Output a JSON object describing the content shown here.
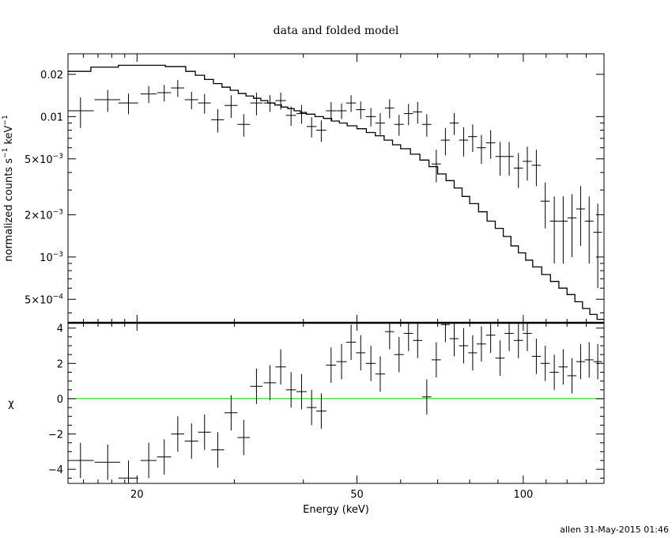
{
  "title": "data and folded model",
  "footer": "allen 31-May-2015 01:46",
  "chart_data": [
    {
      "type": "scatter",
      "panel": "top",
      "ylabel_main": "normalized counts s",
      "ylabel_sup1": "−1",
      "ylabel_mid": " keV",
      "ylabel_sup2": "−1",
      "xscale": "log",
      "yscale": "log",
      "xlim": [
        15,
        140
      ],
      "ylim": [
        0.00034,
        0.028
      ],
      "yticks": [
        {
          "v": 0.02,
          "mant": "0.02",
          "exp": ""
        },
        {
          "v": 0.01,
          "mant": "0.01",
          "exp": ""
        },
        {
          "v": 0.005,
          "mant": "5×10",
          "exp": "−3"
        },
        {
          "v": 0.002,
          "mant": "2×10",
          "exp": "−3"
        },
        {
          "v": 0.001,
          "mant": "10",
          "exp": "−3"
        },
        {
          "v": 0.0005,
          "mant": "5×10",
          "exp": "−4"
        }
      ],
      "data": {
        "x": [
          15.8,
          17.7,
          19.3,
          21.0,
          22.4,
          23.7,
          25.1,
          26.5,
          28.0,
          29.6,
          31.2,
          32.9,
          34.8,
          36.4,
          38.0,
          39.7,
          41.4,
          43.1,
          44.9,
          46.9,
          48.8,
          50.8,
          53.0,
          55.1,
          57.3,
          59.6,
          62.0,
          64.4,
          66.9,
          69.6,
          72.3,
          75.0,
          78.0,
          81.0,
          84.0,
          87.3,
          90.8,
          94.3,
          98.0,
          101.7,
          105.6,
          109.6,
          113.8,
          118.1,
          122.5,
          127.0,
          131.6,
          136.4
        ],
        "y": [
          0.011,
          0.0132,
          0.0125,
          0.0145,
          0.0148,
          0.016,
          0.0132,
          0.0125,
          0.0095,
          0.012,
          0.0088,
          0.0125,
          0.0125,
          0.013,
          0.0102,
          0.0105,
          0.0085,
          0.008,
          0.011,
          0.011,
          0.0125,
          0.0112,
          0.01,
          0.009,
          0.0115,
          0.0088,
          0.0105,
          0.0108,
          0.0088,
          0.0046,
          0.0068,
          0.009,
          0.0068,
          0.0072,
          0.006,
          0.0065,
          0.0052,
          0.0052,
          0.0043,
          0.0048,
          0.0045,
          0.0025,
          0.0018,
          0.0018,
          0.0019,
          0.0022,
          0.0018,
          0.0015
        ],
        "xerr": [
          0.9,
          0.95,
          0.8,
          0.7,
          0.65,
          0.65,
          0.7,
          0.7,
          0.75,
          0.8,
          0.8,
          0.85,
          0.9,
          0.8,
          0.8,
          0.85,
          0.85,
          0.9,
          0.95,
          1.0,
          1.0,
          1.0,
          1.1,
          1.1,
          1.1,
          1.2,
          1.2,
          1.25,
          1.3,
          1.35,
          1.35,
          1.4,
          1.5,
          1.5,
          1.6,
          1.7,
          1.75,
          1.8,
          1.9,
          1.9,
          2.0,
          2.1,
          2.1,
          2.2,
          2.3,
          2.3,
          2.4,
          2.5
        ],
        "ylo": [
          0.0083,
          0.0108,
          0.0104,
          0.0125,
          0.0128,
          0.0138,
          0.0113,
          0.0105,
          0.0077,
          0.0098,
          0.0072,
          0.0102,
          0.0108,
          0.0112,
          0.0086,
          0.0089,
          0.0071,
          0.0066,
          0.0093,
          0.0096,
          0.0108,
          0.0096,
          0.0085,
          0.0074,
          0.0097,
          0.0073,
          0.0087,
          0.0089,
          0.0072,
          0.0034,
          0.0053,
          0.0074,
          0.0052,
          0.0056,
          0.0046,
          0.005,
          0.0038,
          0.0038,
          0.0031,
          0.0035,
          0.0032,
          0.0016,
          0.0009,
          0.0009,
          0.001,
          0.0012,
          0.0009,
          0.0006
        ],
        "yhi": [
          0.0137,
          0.0155,
          0.0146,
          0.0165,
          0.0168,
          0.0182,
          0.015,
          0.0145,
          0.0113,
          0.0142,
          0.0104,
          0.0148,
          0.0142,
          0.0148,
          0.0118,
          0.0121,
          0.0099,
          0.0094,
          0.0127,
          0.0124,
          0.0142,
          0.0128,
          0.0115,
          0.0106,
          0.0133,
          0.0103,
          0.0123,
          0.0127,
          0.0104,
          0.0058,
          0.0083,
          0.0106,
          0.0084,
          0.0088,
          0.0074,
          0.008,
          0.0066,
          0.0066,
          0.0055,
          0.0061,
          0.0058,
          0.0034,
          0.0027,
          0.0027,
          0.0028,
          0.0032,
          0.0027,
          0.0024
        ]
      },
      "model": {
        "x": [
          15,
          16.5,
          18.5,
          20.5,
          22.5,
          24.5,
          25.5,
          26.5,
          27.5,
          28.5,
          29.5,
          30.5,
          31.5,
          32.5,
          33.5,
          34.5,
          35.5,
          36.5,
          37.5,
          38.5,
          39.5,
          40.5,
          42,
          43.5,
          45,
          46.5,
          48,
          50,
          52,
          54,
          56,
          58,
          60,
          62.5,
          65,
          67.5,
          70,
          72.5,
          75,
          77.5,
          80,
          83,
          86,
          89,
          92,
          95,
          98,
          101,
          104,
          108,
          112,
          116,
          120,
          124,
          128,
          132,
          136,
          140
        ],
        "y": [
          0.021,
          0.0225,
          0.0232,
          0.0232,
          0.0227,
          0.021,
          0.0197,
          0.0184,
          0.0172,
          0.0162,
          0.0154,
          0.0146,
          0.014,
          0.0135,
          0.013,
          0.0125,
          0.0121,
          0.0117,
          0.0114,
          0.011,
          0.0107,
          0.0104,
          0.01,
          0.0097,
          0.0093,
          0.009,
          0.0086,
          0.0082,
          0.0077,
          0.0073,
          0.0068,
          0.0063,
          0.0059,
          0.0054,
          0.0049,
          0.0044,
          0.0039,
          0.0035,
          0.0031,
          0.0027,
          0.0024,
          0.0021,
          0.0018,
          0.0016,
          0.0014,
          0.0012,
          0.00107,
          0.00095,
          0.00085,
          0.00075,
          0.00067,
          0.0006,
          0.00054,
          0.00048,
          0.00043,
          0.00039,
          0.00036,
          0.00034
        ]
      }
    },
    {
      "type": "scatter",
      "panel": "bottom",
      "xlabel": "Energy (keV)",
      "ylabel": "χ",
      "xscale": "log",
      "xlim": [
        15,
        140
      ],
      "ylim": [
        -4.8,
        4.3
      ],
      "yticks": [
        4,
        2,
        0,
        -2,
        -4
      ],
      "xticks": [
        {
          "v": 20,
          "label": "20"
        },
        {
          "v": 50,
          "label": "50"
        },
        {
          "v": 100,
          "label": "100"
        }
      ],
      "zero_line_color": "#00cc00",
      "data": {
        "x": [
          15.8,
          17.7,
          19.3,
          21.0,
          22.4,
          23.7,
          25.1,
          26.5,
          28.0,
          29.6,
          31.2,
          32.9,
          34.8,
          36.4,
          38.0,
          39.7,
          41.4,
          43.1,
          44.9,
          46.9,
          48.8,
          50.8,
          53.0,
          55.1,
          57.3,
          59.6,
          62.0,
          64.4,
          66.9,
          69.6,
          72.3,
          75.0,
          78.0,
          81.0,
          84.0,
          87.3,
          90.8,
          94.3,
          98.0,
          101.7,
          105.6,
          109.6,
          113.8,
          118.1,
          122.5,
          127.0,
          131.6,
          136.4
        ],
        "y": [
          -3.5,
          -3.6,
          -4.5,
          -3.5,
          -3.3,
          -2.0,
          -2.4,
          -1.9,
          -2.9,
          -0.8,
          -2.2,
          0.7,
          0.9,
          1.8,
          0.5,
          0.4,
          -0.5,
          -0.7,
          1.9,
          2.1,
          3.2,
          2.6,
          2.0,
          1.4,
          3.8,
          2.5,
          3.7,
          3.3,
          0.1,
          2.2,
          4.2,
          3.4,
          3.0,
          2.6,
          3.1,
          3.6,
          2.3,
          3.7,
          3.3,
          3.7,
          2.4,
          2.0,
          1.5,
          1.8,
          1.3,
          2.1,
          2.2,
          2.1
        ],
        "xerr": [
          0.9,
          0.95,
          0.8,
          0.7,
          0.65,
          0.65,
          0.7,
          0.7,
          0.75,
          0.8,
          0.8,
          0.85,
          0.9,
          0.8,
          0.8,
          0.85,
          0.85,
          0.9,
          0.95,
          1.0,
          1.0,
          1.0,
          1.1,
          1.1,
          1.1,
          1.2,
          1.2,
          1.25,
          1.3,
          1.35,
          1.35,
          1.4,
          1.5,
          1.5,
          1.6,
          1.7,
          1.75,
          1.8,
          1.9,
          1.9,
          2.0,
          2.1,
          2.1,
          2.2,
          2.3,
          2.3,
          2.4,
          2.5
        ],
        "yerr": 1
      }
    }
  ]
}
